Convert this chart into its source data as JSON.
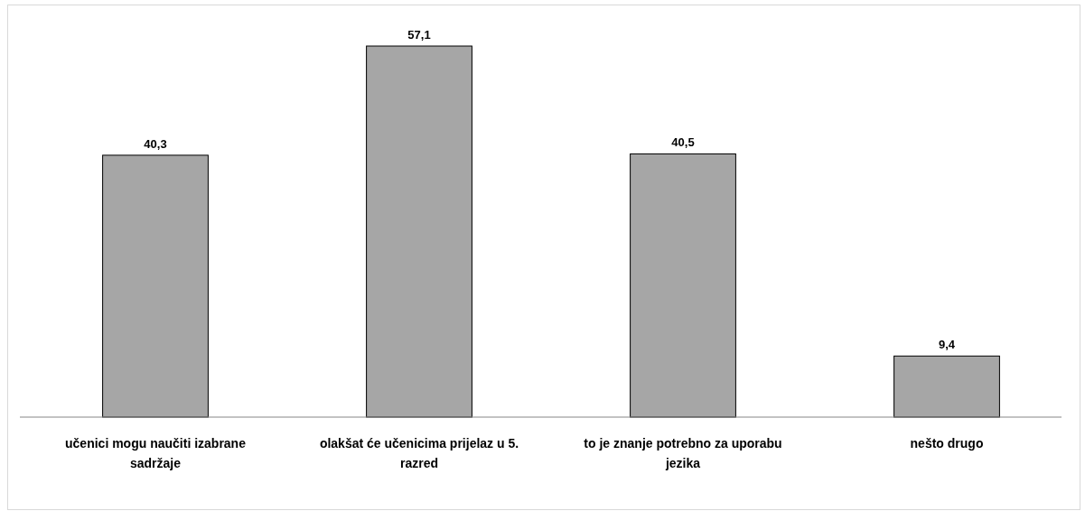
{
  "chart_data": {
    "type": "bar",
    "categories": [
      "učenici mogu naučiti izabrane sadržaje",
      "olakšat će učenicima prijelaz u 5. razred",
      "to je znanje potrebno za uporabu jezika",
      "nešto drugo"
    ],
    "values": [
      40.3,
      57.1,
      40.5,
      9.4
    ],
    "color": "#a6a6a6",
    "data_labels": true,
    "value_labels": [
      "40,3",
      "57,1",
      "40,5",
      "9,4"
    ]
  }
}
